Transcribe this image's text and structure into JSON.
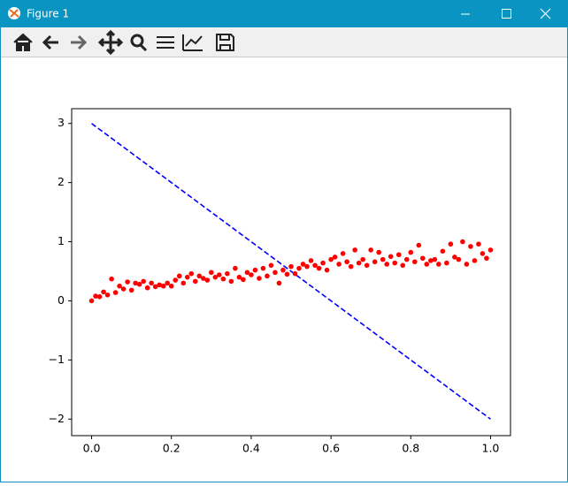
{
  "window": {
    "title": "Figure 1"
  },
  "chart_data": {
    "type": "scatter",
    "xlim": [
      -0.05,
      1.05
    ],
    "ylim": [
      -2.28,
      3.25
    ],
    "xticks": [
      {
        "value": 0,
        "label": "0.0"
      },
      {
        "value": 0.2,
        "label": "0.2"
      },
      {
        "value": 0.4,
        "label": "0.4"
      },
      {
        "value": 0.6,
        "label": "0.6"
      },
      {
        "value": 0.8,
        "label": "0.8"
      },
      {
        "value": 1,
        "label": "1.0"
      }
    ],
    "yticks": [
      {
        "value": -2,
        "label": "−2"
      },
      {
        "value": -1,
        "label": "−1"
      },
      0,
      1,
      2,
      3
    ],
    "series": [
      {
        "type": "line",
        "color": "#0000ff",
        "dashed": true,
        "x": [
          0,
          1
        ],
        "values": [
          3,
          -2
        ]
      },
      {
        "type": "scatter",
        "color": "#ff0000",
        "x": [
          0,
          0.01,
          0.02,
          0.03,
          0.04,
          0.05,
          0.06,
          0.07,
          0.08,
          0.09,
          0.1,
          0.11,
          0.12,
          0.13,
          0.14,
          0.15,
          0.16,
          0.17,
          0.18,
          0.19,
          0.2,
          0.21,
          0.22,
          0.23,
          0.24,
          0.25,
          0.26,
          0.27,
          0.28,
          0.29,
          0.3,
          0.31,
          0.32,
          0.33,
          0.34,
          0.35,
          0.36,
          0.37,
          0.38,
          0.39,
          0.4,
          0.41,
          0.42,
          0.43,
          0.44,
          0.45,
          0.46,
          0.47,
          0.48,
          0.49,
          0.5,
          0.51,
          0.52,
          0.53,
          0.54,
          0.55,
          0.56,
          0.57,
          0.58,
          0.59,
          0.6,
          0.61,
          0.62,
          0.63,
          0.64,
          0.65,
          0.66,
          0.67,
          0.68,
          0.69,
          0.7,
          0.71,
          0.72,
          0.73,
          0.74,
          0.75,
          0.76,
          0.77,
          0.78,
          0.79,
          0.8,
          0.81,
          0.82,
          0.83,
          0.84,
          0.85,
          0.86,
          0.87,
          0.88,
          0.89,
          0.9,
          0.91,
          0.92,
          0.93,
          0.94,
          0.95,
          0.96,
          0.97,
          0.98,
          0.99,
          1
        ],
        "values": [
          0,
          0.08,
          0.07,
          0.15,
          0.1,
          0.37,
          0.14,
          0.25,
          0.2,
          0.32,
          0.18,
          0.3,
          0.28,
          0.33,
          0.22,
          0.3,
          0.24,
          0.27,
          0.25,
          0.3,
          0.25,
          0.35,
          0.42,
          0.3,
          0.4,
          0.46,
          0.33,
          0.42,
          0.38,
          0.35,
          0.48,
          0.4,
          0.44,
          0.37,
          0.46,
          0.33,
          0.55,
          0.4,
          0.36,
          0.48,
          0.44,
          0.52,
          0.38,
          0.55,
          0.42,
          0.6,
          0.48,
          0.3,
          0.52,
          0.45,
          0.58,
          0.46,
          0.55,
          0.62,
          0.58,
          0.68,
          0.6,
          0.55,
          0.64,
          0.52,
          0.7,
          0.74,
          0.62,
          0.8,
          0.66,
          0.58,
          0.86,
          0.64,
          0.7,
          0.6,
          0.86,
          0.66,
          0.82,
          0.7,
          0.62,
          0.75,
          0.64,
          0.78,
          0.6,
          0.7,
          0.82,
          0.66,
          0.94,
          0.72,
          0.62,
          0.68,
          0.7,
          0.62,
          0.84,
          0.64,
          0.96,
          0.74,
          0.7,
          1,
          0.62,
          0.92,
          0.68,
          0.96,
          0.8,
          0.72,
          0.86
        ]
      }
    ]
  }
}
